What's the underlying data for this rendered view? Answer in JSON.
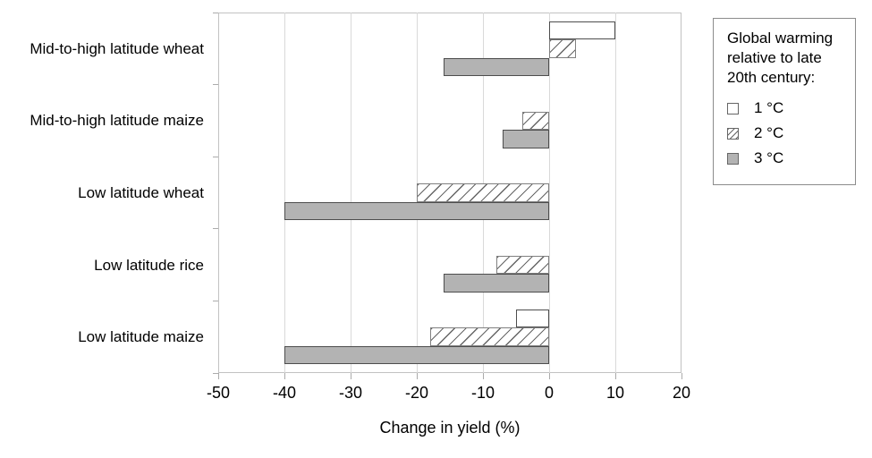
{
  "chart_data": {
    "type": "bar",
    "orientation": "horizontal",
    "categories": [
      "Mid-to-high latitude wheat",
      "Mid-to-high latitude maize",
      "Low latitude wheat",
      "Low latitude rice",
      "Low latitude maize"
    ],
    "series": [
      {
        "name": "1 °C",
        "pattern": "solid",
        "fill": "#ffffff",
        "border": "#4d4d4d",
        "values": [
          10,
          0,
          0,
          0,
          -5
        ]
      },
      {
        "name": "2 °C",
        "pattern": "hatch",
        "fill": "#ffffff",
        "border": "#808080",
        "hatch_color": "#666666",
        "values": [
          4,
          -4,
          -20,
          -8,
          -18
        ]
      },
      {
        "name": "3 °C",
        "pattern": "solid",
        "fill": "#b3b3b3",
        "border": "#4d4d4d",
        "values": [
          -16,
          -7,
          -40,
          -16,
          -40
        ]
      }
    ],
    "xlabel": "Change in yield (%)",
    "xlim": [
      -50,
      20
    ],
    "xticks": [
      -50,
      -40,
      -30,
      -20,
      -10,
      0,
      10,
      20
    ],
    "grid": true,
    "legend": {
      "title": "Global warming relative to late 20th century:",
      "position": "outside-top-right",
      "entries": [
        "1 °C",
        "2 °C",
        "3 °C"
      ]
    }
  },
  "colors": {
    "background": "#ffffff",
    "gridline": "#d9d9d9",
    "plot_border": "#c2c2c2",
    "tick": "#ababab",
    "text": "#000000",
    "legend_border": "#8c8c8c",
    "gray_fill": "#b3b3b3"
  }
}
